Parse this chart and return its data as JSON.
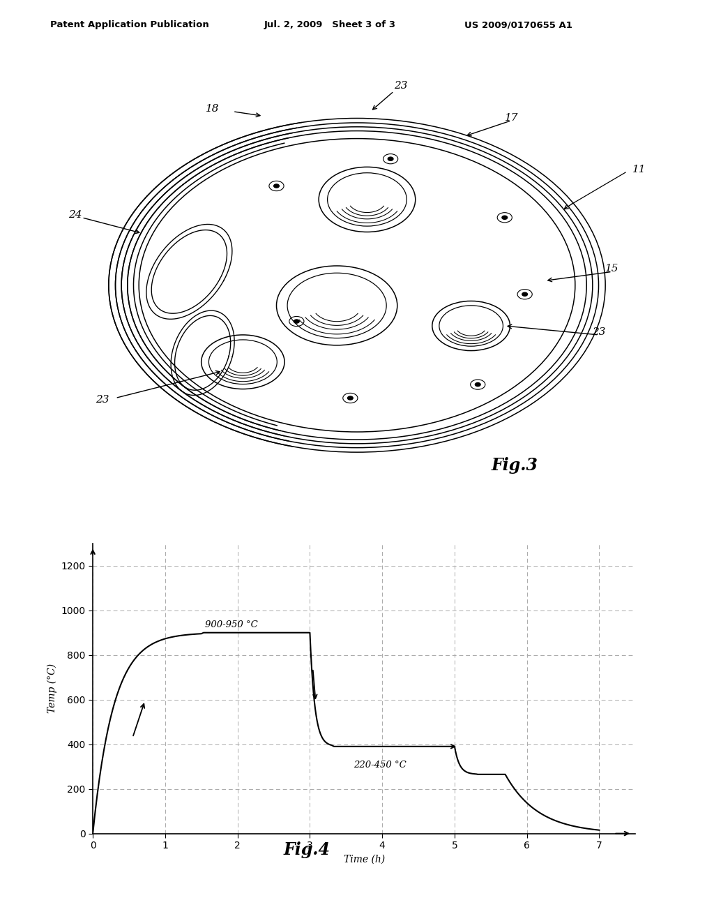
{
  "header_left": "Patent Application Publication",
  "header_mid": "Jul. 2, 2009   Sheet 3 of 3",
  "header_right": "US 2009/0170655 A1",
  "fig3_label": "Fig.3",
  "fig4_label": "Fig.4",
  "chart_ylabel": "Temp (°C)",
  "chart_xlabel": "Time (h)",
  "chart_yticks": [
    0,
    200,
    400,
    600,
    800,
    1000,
    1200
  ],
  "chart_xticks": [
    0,
    1,
    2,
    3,
    4,
    5,
    6,
    7
  ],
  "chart_xlim": [
    0,
    7.5
  ],
  "chart_ylim": [
    0,
    1300
  ],
  "label_900_950": "900-950 °C",
  "label_220_450": "220-450 °C",
  "bg_color": "#ffffff",
  "line_color": "#000000",
  "grid_color": "#aaaaaa"
}
